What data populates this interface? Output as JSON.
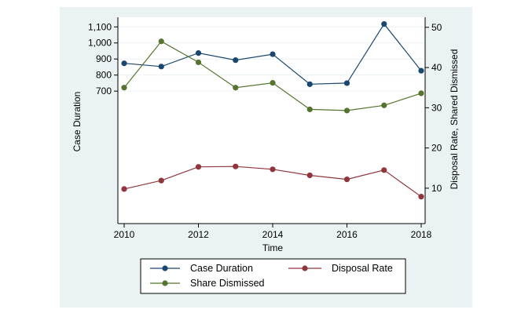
{
  "chart_data": {
    "type": "line",
    "title": "",
    "xlabel": "Time",
    "ylabel_left": "Case Duration",
    "ylabel_right": "Disposal Rate, Shared Dismissed",
    "x": [
      2010,
      2011,
      2012,
      2013,
      2014,
      2015,
      2016,
      2017,
      2018
    ],
    "x_ticks": [
      2010,
      2012,
      2014,
      2016,
      2018
    ],
    "x_tick_labels": [
      "2010",
      "2012",
      "2014",
      "2016",
      "2018"
    ],
    "y_left_ticks": [
      700,
      800,
      900,
      1000,
      1100
    ],
    "y_left_tick_labels": [
      "700",
      "800",
      "900",
      "1,000",
      "1,100"
    ],
    "y_left_range": [
      -125,
      1160
    ],
    "y_right_ticks": [
      10,
      20,
      30,
      40,
      50
    ],
    "y_right_tick_labels": [
      "10",
      "20",
      "30",
      "40",
      "50"
    ],
    "y_right_range": [
      1.2,
      52.5
    ],
    "grid": true,
    "legend_position": "bottom",
    "series": [
      {
        "name": "Case Duration",
        "axis": "left",
        "color": "#1a476f",
        "values": [
          873,
          853,
          937,
          893,
          930,
          743,
          750,
          1118,
          827
        ]
      },
      {
        "name": "Disposal Rate",
        "axis": "right",
        "color": "#90353b",
        "values": [
          9.8,
          11.9,
          15.3,
          15.4,
          14.7,
          13.2,
          12.2,
          14.5,
          7.9
        ]
      },
      {
        "name": "Share Dismissed",
        "axis": "right",
        "color": "#55752f",
        "values": [
          35.0,
          46.5,
          41.3,
          35.0,
          36.2,
          29.6,
          29.3,
          30.6,
          33.6
        ]
      }
    ]
  },
  "colors": {
    "outer_background": "#eaf2f3",
    "plot_background": "#ffffff",
    "grid": "#eaf2f3"
  }
}
